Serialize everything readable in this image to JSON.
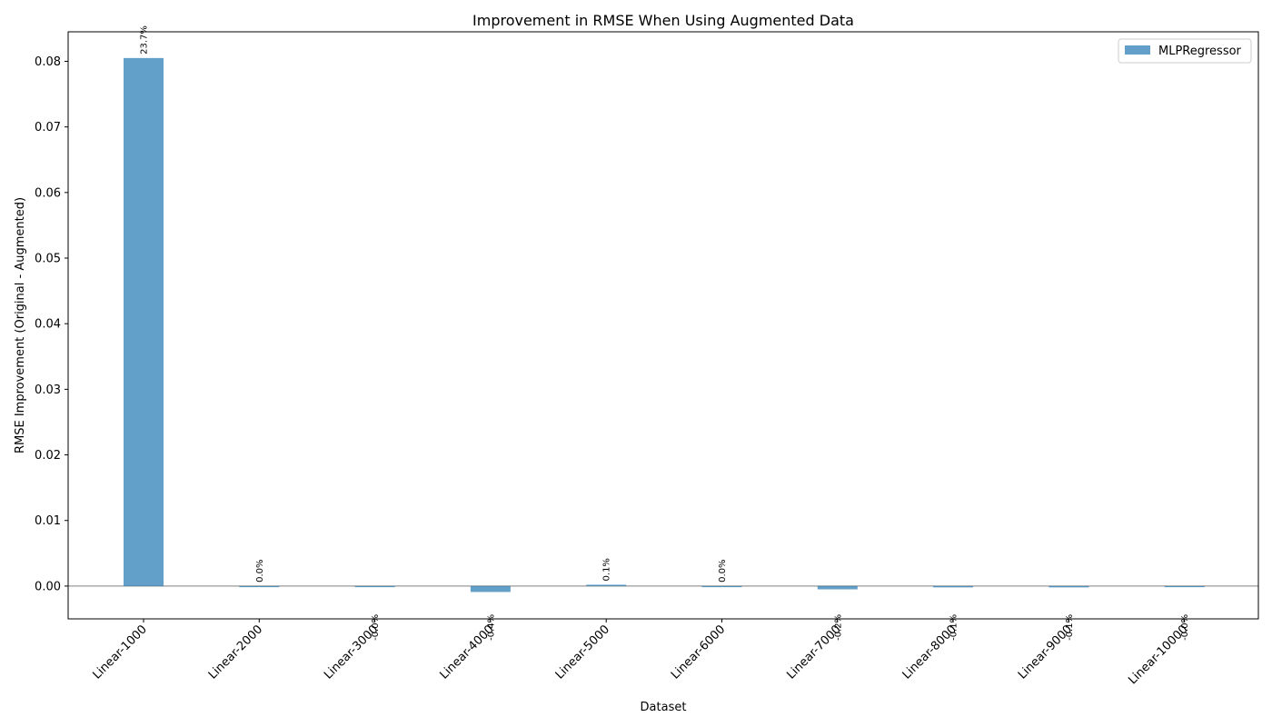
{
  "chart_data": {
    "type": "bar",
    "title": "Improvement in RMSE When Using Augmented Data",
    "xlabel": "Dataset",
    "ylabel": "RMSE Improvement (Original - Augmented)",
    "categories": [
      "Linear-1000",
      "Linear-2000",
      "Linear-3000",
      "Linear-4000",
      "Linear-5000",
      "Linear-6000",
      "Linear-7000",
      "Linear-8000",
      "Linear-9000",
      "Linear-10000"
    ],
    "series": [
      {
        "name": "MLPRegressor",
        "color": "#1f77b4",
        "opacity": 0.7,
        "values": [
          0.0805,
          0.0,
          -0.0001,
          -0.0009,
          0.0002,
          0.0,
          -0.0005,
          -0.0002,
          -0.0002,
          -0.0001
        ],
        "labels": [
          "23.7%",
          "0.0%",
          "-0.0%",
          "-0.4%",
          "0.1%",
          "0.0%",
          "-0.2%",
          "-0.1%",
          "-0.1%",
          "-0.0%"
        ]
      }
    ],
    "ylim": [
      -0.005,
      0.0845
    ],
    "yticks": [
      0.0,
      0.01,
      0.02,
      0.03,
      0.04,
      0.05,
      0.06,
      0.07,
      0.08
    ],
    "ytick_labels": [
      "0.00",
      "0.01",
      "0.02",
      "0.03",
      "0.04",
      "0.05",
      "0.06",
      "0.07",
      "0.08"
    ],
    "zero_line": true,
    "grid": false,
    "legend_position": "top-right"
  }
}
